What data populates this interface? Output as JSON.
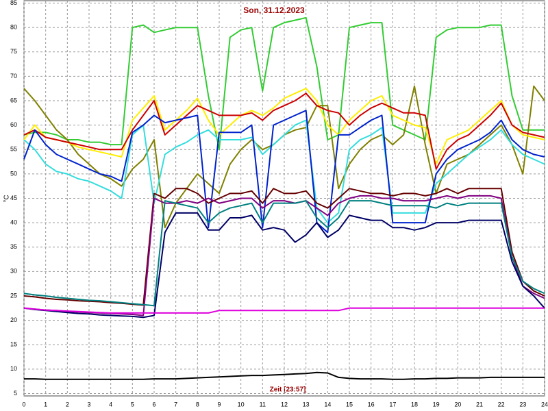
{
  "chart_data": {
    "type": "line",
    "title": "Son, 31.12.2023",
    "x_label": "Zeit [23:57]",
    "y_label": "°C",
    "x": [
      0,
      0.5,
      1,
      1.5,
      2,
      2.5,
      3,
      3.5,
      4,
      4.5,
      5,
      5.5,
      6,
      6.5,
      7,
      7.5,
      8,
      8.5,
      9,
      9.5,
      10,
      10.5,
      11,
      11.5,
      12,
      12.5,
      13,
      13.5,
      14,
      14.5,
      15,
      15.5,
      16,
      16.5,
      17,
      17.5,
      18,
      18.5,
      19,
      19.5,
      20,
      20.5,
      21,
      21.5,
      22,
      22.5,
      23,
      23.5,
      24
    ],
    "xlim": [
      0,
      24
    ],
    "xticks": [
      0,
      1,
      2,
      3,
      4,
      5,
      6,
      7,
      8,
      9,
      10,
      11,
      12,
      13,
      14,
      15,
      16,
      17,
      18,
      19,
      20,
      21,
      22,
      23,
      24
    ],
    "ylim": [
      4.5,
      85.5
    ],
    "yticks": [
      5,
      10,
      15,
      20,
      25,
      30,
      35,
      40,
      45,
      50,
      55,
      60,
      65,
      70,
      75,
      80,
      85
    ],
    "grid": true,
    "series": [
      {
        "color": "#33cc33",
        "values": [
          58,
          58.5,
          58.5,
          58,
          57,
          57,
          56.5,
          56.5,
          56,
          56,
          80,
          80.5,
          79,
          79.5,
          80,
          80,
          80,
          66,
          55,
          78,
          79.5,
          80,
          67,
          80,
          81,
          81.5,
          82,
          72,
          57,
          58,
          80,
          80.5,
          81,
          81,
          60,
          59,
          58,
          57,
          78,
          79.5,
          80,
          80,
          80,
          80.5,
          80.5,
          66,
          59,
          59,
          59
        ]
      },
      {
        "color": "#808000",
        "values": [
          67.5,
          65,
          62,
          59,
          57,
          54,
          52,
          50,
          49,
          47.5,
          51,
          53,
          57,
          39,
          44,
          47,
          50,
          48,
          46,
          52,
          55,
          57,
          55,
          56,
          58,
          59,
          59.5,
          64,
          64,
          47,
          52,
          55,
          57,
          58,
          56,
          58,
          68,
          56,
          46,
          52,
          53,
          54,
          56,
          58,
          60,
          56,
          50,
          68,
          65
        ]
      },
      {
        "color": "#33dddd",
        "values": [
          57,
          55,
          52,
          50.5,
          50,
          49,
          48.5,
          47.5,
          46.5,
          45,
          58,
          60,
          44,
          54,
          55.5,
          56.5,
          58,
          59,
          57,
          57,
          57,
          57.5,
          54,
          56,
          58,
          60,
          61,
          43,
          40,
          42,
          55,
          57,
          58,
          59.5,
          42,
          42,
          42,
          42,
          48,
          50,
          52,
          54,
          55.5,
          57,
          59,
          56,
          54,
          53,
          52
        ]
      },
      {
        "color": "#ffee00",
        "values": [
          57,
          60,
          57.5,
          57,
          56.5,
          55.5,
          55,
          54.5,
          54,
          53.5,
          61,
          63.5,
          66,
          59,
          61,
          63,
          65.5,
          61,
          58,
          60,
          62,
          63,
          62,
          63.5,
          65.5,
          66.5,
          67.5,
          65,
          60,
          58,
          61,
          63,
          65,
          66,
          62,
          61,
          60,
          59.5,
          52,
          57,
          58,
          59,
          61,
          63,
          65,
          60,
          58,
          57.5,
          57
        ]
      },
      {
        "color": "#cc0000",
        "values": [
          58,
          59,
          57.5,
          57,
          56.5,
          56,
          55.5,
          55,
          55,
          55,
          59,
          62,
          65,
          58,
          60,
          62,
          64,
          63,
          62,
          62,
          62,
          62.5,
          61,
          63,
          64,
          65,
          66.5,
          64,
          63,
          62.5,
          60,
          62,
          63.5,
          64.5,
          63.5,
          62.5,
          62.5,
          62,
          51,
          55,
          57,
          58,
          60,
          62,
          64.5,
          60,
          58.5,
          58,
          57.5
        ]
      },
      {
        "color": "#0022cc",
        "values": [
          53,
          59,
          56,
          54,
          53,
          52,
          51,
          50,
          49.5,
          48.5,
          58.5,
          60,
          62,
          60.5,
          61,
          61.5,
          62,
          39,
          58.5,
          58.5,
          58.5,
          60,
          39,
          60,
          61,
          62,
          63,
          40,
          38,
          58,
          58,
          59.5,
          61,
          62,
          40,
          40,
          40,
          40,
          50,
          53,
          55,
          56,
          57,
          58.5,
          61,
          57,
          55,
          54,
          53.5
        ]
      },
      {
        "color": "#660000",
        "values": [
          25,
          24.8,
          24.5,
          24.3,
          24.2,
          24,
          23.9,
          23.8,
          23.6,
          23.5,
          23.3,
          23.1,
          46,
          45,
          47,
          47,
          46,
          44,
          45,
          46,
          46,
          46.5,
          44,
          47,
          46,
          46,
          46.5,
          44,
          43,
          45,
          47,
          46.5,
          46,
          46,
          45.5,
          46,
          46,
          45.5,
          46,
          47,
          46,
          47,
          47,
          47,
          47,
          34,
          28,
          26,
          25
        ]
      },
      {
        "color": "#800080",
        "values": [
          22.5,
          22.3,
          22.1,
          22,
          21.8,
          21.7,
          21.6,
          21.5,
          21.4,
          21.3,
          21.2,
          21,
          45,
          44,
          44,
          44.5,
          44,
          45,
          44,
          44.5,
          45,
          45,
          43,
          44.5,
          44.5,
          44,
          44.5,
          43,
          41.5,
          44,
          45,
          45.5,
          45.5,
          45,
          45,
          44.5,
          44.5,
          44.5,
          45,
          45.5,
          45,
          45.5,
          45.5,
          45.5,
          45,
          33,
          27,
          25.5,
          24.5
        ]
      },
      {
        "color": "#008080",
        "values": [
          25.5,
          25.2,
          25,
          24.7,
          24.5,
          24.3,
          24.1,
          24,
          23.8,
          23.6,
          23.4,
          23.2,
          23,
          44.5,
          44,
          43.5,
          43,
          40,
          42,
          43,
          43.5,
          44,
          40,
          44,
          44,
          44,
          44.5,
          41,
          39,
          41,
          44.5,
          44.5,
          44.5,
          44,
          43.5,
          43.5,
          43.5,
          43.5,
          43,
          44,
          43.5,
          44,
          44,
          44,
          44,
          33,
          28,
          26.5,
          25.5
        ]
      },
      {
        "color": "#000066",
        "values": [
          22.5,
          22.2,
          22,
          21.8,
          21.6,
          21.4,
          21.3,
          21.1,
          21,
          20.9,
          20.8,
          20.6,
          21,
          38,
          42,
          42,
          42,
          38.5,
          38.5,
          41,
          41,
          41.5,
          38.5,
          39,
          38.5,
          36,
          37.5,
          40,
          37,
          38.5,
          41.5,
          41,
          40.5,
          40.5,
          39,
          39,
          38.5,
          39,
          40,
          40,
          40,
          40.5,
          40.5,
          40.5,
          40.5,
          32,
          27,
          25,
          22.5
        ]
      },
      {
        "color": "#dd00dd",
        "values": [
          22.5,
          22.3,
          22.1,
          22,
          21.9,
          21.8,
          21.7,
          21.6,
          21.5,
          21.5,
          21.5,
          21.5,
          21.5,
          21.5,
          21.5,
          21.5,
          21.5,
          21.5,
          22,
          22,
          22,
          22,
          22,
          22,
          22,
          22,
          22,
          22,
          22,
          22,
          22.5,
          22.5,
          22.5,
          22.5,
          22.5,
          22.5,
          22.5,
          22.5,
          22.5,
          22.5,
          22.5,
          22.5,
          22.5,
          22.5,
          22.5,
          22.5,
          22.5,
          22.5,
          22.5
        ]
      },
      {
        "color": "#000000",
        "values": [
          8,
          8,
          7.9,
          7.9,
          7.9,
          7.9,
          7.9,
          7.9,
          7.9,
          7.9,
          7.9,
          7.9,
          8,
          8,
          8,
          8.1,
          8.2,
          8.3,
          8.4,
          8.5,
          8.6,
          8.7,
          8.7,
          8.8,
          8.9,
          9,
          9.1,
          9.3,
          9.2,
          8.3,
          8.1,
          8,
          8,
          8,
          7.9,
          7.9,
          8,
          8,
          8.1,
          8.1,
          8.2,
          8.2,
          8.2,
          8.3,
          8.3,
          8.3,
          8.3,
          8.3,
          8.3
        ]
      }
    ]
  }
}
